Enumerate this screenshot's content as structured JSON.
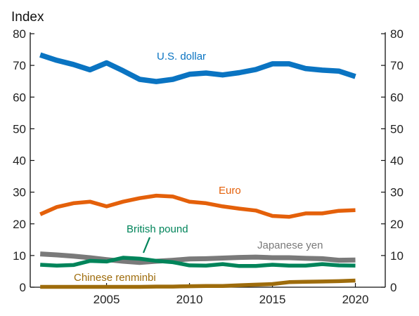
{
  "chart_data": {
    "type": "line",
    "title": "Index",
    "xlabel": "",
    "ylabel": "",
    "ylim": [
      0,
      80
    ],
    "yticks": [
      0,
      10,
      20,
      30,
      40,
      50,
      60,
      70,
      80
    ],
    "xlim": [
      2000.4,
      2021.8
    ],
    "xticks": [
      2005,
      2010,
      2015,
      2020
    ],
    "y_axis": "both",
    "grid": false,
    "legend": "inline labels",
    "x": [
      2001,
      2002,
      2003,
      2004,
      2005,
      2006,
      2007,
      2008,
      2009,
      2010,
      2011,
      2012,
      2013,
      2014,
      2015,
      2016,
      2017,
      2018,
      2019,
      2020
    ],
    "series": [
      {
        "name": "U.S. dollar",
        "color": "#0a74c2",
        "values": [
          73.3,
          71.6,
          70.3,
          68.6,
          70.8,
          68.3,
          65.6,
          64.9,
          65.6,
          67.2,
          67.6,
          67.0,
          67.7,
          68.7,
          70.5,
          70.5,
          69.0,
          68.5,
          68.2,
          66.5
        ]
      },
      {
        "name": "Euro",
        "color": "#e4600a",
        "values": [
          23.0,
          25.3,
          26.5,
          27.0,
          25.5,
          27.0,
          28.1,
          28.9,
          28.6,
          27.0,
          26.5,
          25.5,
          24.8,
          24.2,
          22.5,
          22.2,
          23.3,
          23.3,
          24.1,
          24.3
        ]
      },
      {
        "name": "Japanese yen",
        "color": "#7a7a7a",
        "values": [
          10.5,
          10.2,
          9.8,
          9.3,
          8.7,
          8.2,
          7.8,
          8.2,
          8.5,
          8.9,
          9.0,
          9.2,
          9.4,
          9.5,
          9.3,
          9.3,
          9.1,
          9.0,
          8.5,
          8.6
        ]
      },
      {
        "name": "British pound",
        "color": "#00845a",
        "values": [
          7.1,
          6.8,
          7.0,
          8.3,
          8.1,
          9.3,
          9.0,
          8.3,
          7.9,
          6.9,
          6.8,
          7.3,
          6.7,
          6.7,
          7.1,
          6.8,
          6.8,
          7.3,
          6.9,
          6.8
        ]
      },
      {
        "name": "Chinese renminbi",
        "color": "#9e6c0c",
        "values": [
          0.1,
          0.1,
          0.1,
          0.1,
          0.1,
          0.1,
          0.1,
          0.2,
          0.2,
          0.3,
          0.4,
          0.4,
          0.6,
          0.8,
          1.0,
          1.6,
          1.7,
          1.8,
          1.9,
          2.1
        ]
      }
    ]
  }
}
